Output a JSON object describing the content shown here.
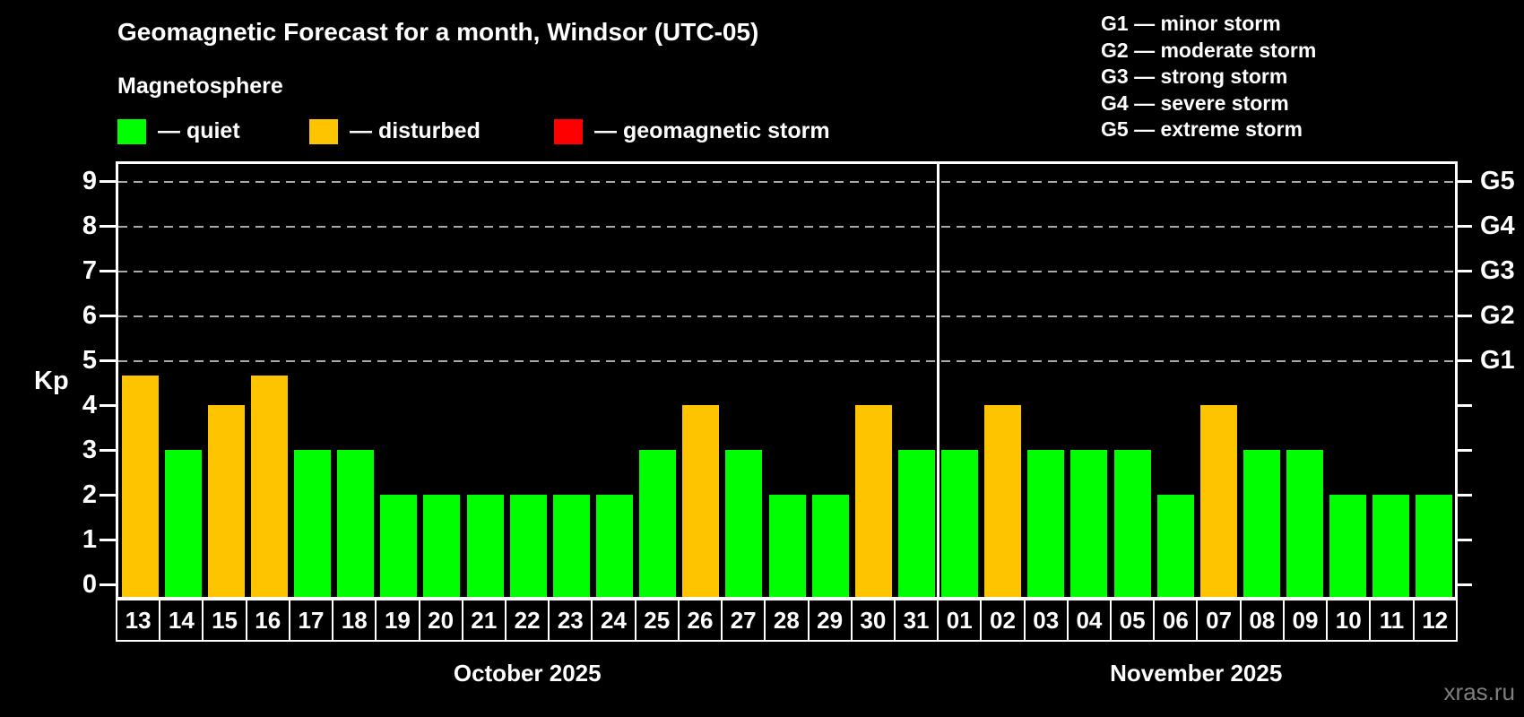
{
  "header": {
    "title": "Geomagnetic Forecast for a month, Windsor (UTC-05)",
    "subtitle": "Magnetosphere",
    "legend": [
      {
        "label": "— quiet",
        "status": "quiet",
        "color": "#00ff00"
      },
      {
        "label": "— disturbed",
        "status": "disturbed",
        "color": "#ffc400"
      },
      {
        "label": "— geomagnetic storm",
        "status": "storm",
        "color": "#ff0000"
      }
    ],
    "storm_scale": [
      "G1 — minor storm",
      "G2 — moderate storm",
      "G3 — strong storm",
      "G4 — severe storm",
      "G5 — extreme storm"
    ]
  },
  "watermark": "xras.ru",
  "chart_data": {
    "type": "bar",
    "title": "Geomagnetic Forecast for a month, Windsor (UTC-05)",
    "ylabel": "Kp",
    "ylim": [
      0,
      9
    ],
    "yticks": [
      0,
      1,
      2,
      3,
      4,
      5,
      6,
      7,
      8,
      9
    ],
    "grid_lines": [
      5,
      6,
      7,
      8,
      9
    ],
    "grid_on": true,
    "right_axis": [
      {
        "kp": 5,
        "label": "G1"
      },
      {
        "kp": 6,
        "label": "G2"
      },
      {
        "kp": 7,
        "label": "G3"
      },
      {
        "kp": 8,
        "label": "G4"
      },
      {
        "kp": 9,
        "label": "G5"
      }
    ],
    "status_colors": {
      "quiet": "#00ff00",
      "disturbed": "#ffc400",
      "storm": "#ff0000"
    },
    "months": [
      {
        "label": "October 2025",
        "start_index": 0,
        "days": 19
      },
      {
        "label": "November 2025",
        "start_index": 19,
        "days": 12
      }
    ],
    "days": [
      {
        "date": "13",
        "kp": 4.67,
        "status": "disturbed"
      },
      {
        "date": "14",
        "kp": 3,
        "status": "quiet"
      },
      {
        "date": "15",
        "kp": 4,
        "status": "disturbed"
      },
      {
        "date": "16",
        "kp": 4.67,
        "status": "disturbed"
      },
      {
        "date": "17",
        "kp": 3,
        "status": "quiet"
      },
      {
        "date": "18",
        "kp": 3,
        "status": "quiet"
      },
      {
        "date": "19",
        "kp": 2,
        "status": "quiet"
      },
      {
        "date": "20",
        "kp": 2,
        "status": "quiet"
      },
      {
        "date": "21",
        "kp": 2,
        "status": "quiet"
      },
      {
        "date": "22",
        "kp": 2,
        "status": "quiet"
      },
      {
        "date": "23",
        "kp": 2,
        "status": "quiet"
      },
      {
        "date": "24",
        "kp": 2,
        "status": "quiet"
      },
      {
        "date": "25",
        "kp": 3,
        "status": "quiet"
      },
      {
        "date": "26",
        "kp": 4,
        "status": "disturbed"
      },
      {
        "date": "27",
        "kp": 3,
        "status": "quiet"
      },
      {
        "date": "28",
        "kp": 2,
        "status": "quiet"
      },
      {
        "date": "29",
        "kp": 2,
        "status": "quiet"
      },
      {
        "date": "30",
        "kp": 4,
        "status": "disturbed"
      },
      {
        "date": "31",
        "kp": 3,
        "status": "quiet"
      },
      {
        "date": "01",
        "kp": 3,
        "status": "quiet"
      },
      {
        "date": "02",
        "kp": 4,
        "status": "disturbed"
      },
      {
        "date": "03",
        "kp": 3,
        "status": "quiet"
      },
      {
        "date": "04",
        "kp": 3,
        "status": "quiet"
      },
      {
        "date": "05",
        "kp": 3,
        "status": "quiet"
      },
      {
        "date": "06",
        "kp": 2,
        "status": "quiet"
      },
      {
        "date": "07",
        "kp": 4,
        "status": "disturbed"
      },
      {
        "date": "08",
        "kp": 3,
        "status": "quiet"
      },
      {
        "date": "09",
        "kp": 3,
        "status": "quiet"
      },
      {
        "date": "10",
        "kp": 2,
        "status": "quiet"
      },
      {
        "date": "11",
        "kp": 2,
        "status": "quiet"
      },
      {
        "date": "12",
        "kp": 2,
        "status": "quiet"
      }
    ]
  }
}
